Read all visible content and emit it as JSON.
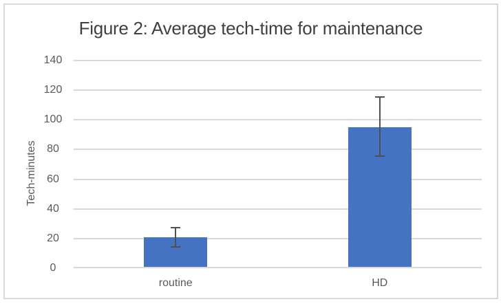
{
  "chart_data": {
    "type": "bar",
    "title": "Figure 2: Average tech-time for maintenance",
    "categories": [
      "routine",
      "HD"
    ],
    "values": [
      21,
      95
    ],
    "error_bars": {
      "low": [
        14,
        75
      ],
      "high": [
        28,
        116
      ]
    },
    "xlabel": "",
    "ylabel": "Tech-minutes",
    "ylim": [
      0,
      140
    ],
    "yticks": [
      0,
      20,
      40,
      60,
      80,
      100,
      120,
      140
    ],
    "grid": true,
    "legend": false,
    "colors": {
      "bar": "#4573c4",
      "error_bar": "#505050",
      "gridline": "#d9d9d9",
      "axis_line": "#d9d9d9",
      "tick_label": "#595959",
      "title": "#404040",
      "frame_border": "#d9d9d9",
      "background": "#ffffff"
    }
  }
}
